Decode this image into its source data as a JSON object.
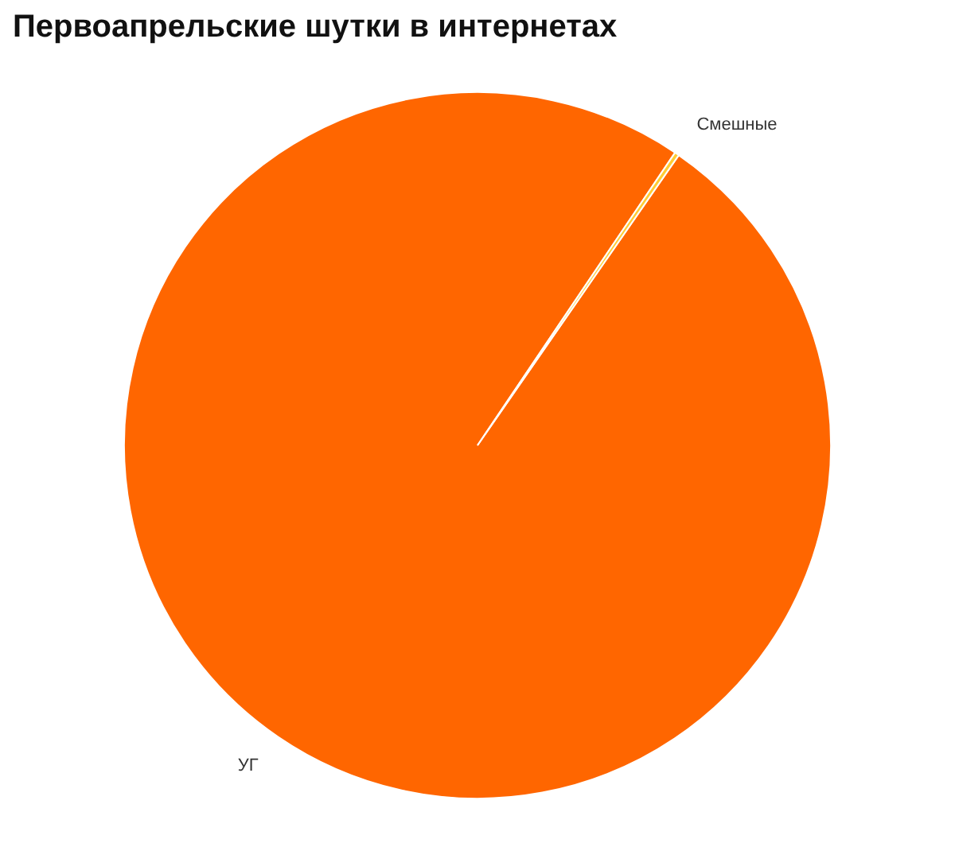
{
  "chart_data": {
    "type": "pie",
    "title": "Первоапрельские шутки в интернетах",
    "categories": [
      "УГ",
      "Смешные"
    ],
    "values": [
      99.8,
      0.2
    ],
    "colors": [
      "#ff6600",
      "#ffcc33"
    ],
    "legend": false
  }
}
